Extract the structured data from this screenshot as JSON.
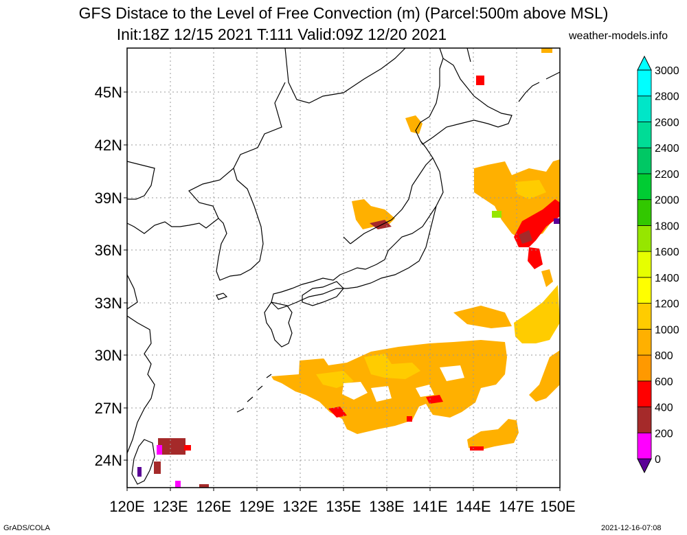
{
  "header": {
    "title_line1": "GFS Distace to the Level of Free Convection (m) (Parcel:500m above MSL)",
    "title_line2": "Init:18Z 12/15 2021 T:111 Valid:09Z 12/20 2021",
    "credit": "weather-models.info"
  },
  "footer": {
    "left": "GrADS/COLA",
    "right": "2021-12-16-07:08"
  },
  "map": {
    "lat_labels": [
      "45N",
      "42N",
      "39N",
      "36N",
      "33N",
      "30N",
      "27N",
      "24N"
    ],
    "lon_labels": [
      "120E",
      "123E",
      "126E",
      "129E",
      "132E",
      "135E",
      "138E",
      "141E",
      "144E",
      "147E",
      "150E"
    ],
    "colors": {
      "coast": "#000000",
      "grid": "#999999",
      "frame": "#000000"
    }
  },
  "colorbar": {
    "labels": [
      "0",
      "200",
      "400",
      "600",
      "800",
      "1000",
      "1200",
      "1400",
      "1600",
      "1800",
      "2000",
      "2200",
      "2400",
      "2600",
      "2800",
      "3000"
    ],
    "colors": [
      "#5a0096",
      "#ff00ff",
      "#a52a2a",
      "#ff0000",
      "#ff9900",
      "#ffb000",
      "#ffcc00",
      "#ffff00",
      "#e6ff00",
      "#96e600",
      "#32c800",
      "#00cc33",
      "#00c864",
      "#00dc96",
      "#00e6c8",
      "#00ffff"
    ],
    "min_label": "0",
    "max_label": "3000"
  }
}
